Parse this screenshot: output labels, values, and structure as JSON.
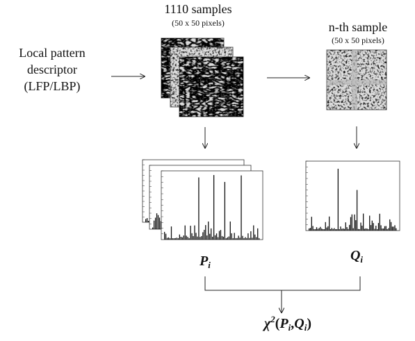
{
  "input": {
    "lines": [
      "Local pattern",
      "descriptor",
      "(LFP/LBP)"
    ]
  },
  "samples": {
    "title": "1110 samples",
    "size": "(50 x 50 pixels)"
  },
  "nth_sample": {
    "title": "n-th sample",
    "size": "(50 x 50 pixels)"
  },
  "hist_p": {
    "symbol": "P",
    "subscript": "i"
  },
  "hist_q": {
    "symbol": "Q",
    "subscript": "i"
  },
  "result": {
    "function": "χ",
    "power": "2",
    "open": "(",
    "separator": ",",
    "close": ")"
  }
}
